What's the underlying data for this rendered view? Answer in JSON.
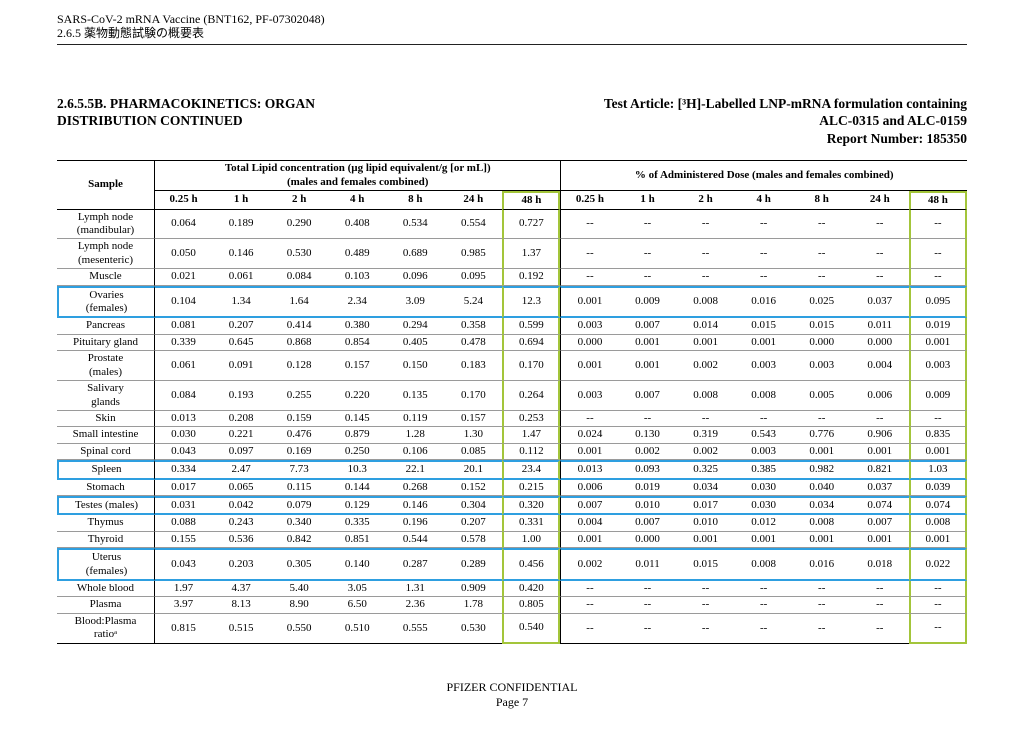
{
  "header": {
    "line1": "SARS-CoV-2 mRNA Vaccine (BNT162, PF-07302048)",
    "line2": "2.6.5 薬物動態試験の概要表"
  },
  "title": {
    "left": "2.6.5.5B. PHARMACOKINETICS: ORGAN\nDISTRIBUTION CONTINUED",
    "right": "Test Article: [³H]-Labelled LNP-mRNA formulation containing\nALC-0315 and ALC-0159\nReport Number: 185350"
  },
  "footer": {
    "line1": "PFIZER CONFIDENTIAL",
    "line2": "Page 7"
  },
  "colors": {
    "column_highlight_green": "#a3c53a",
    "row_highlight_blue": "#2e9fe0"
  },
  "table": {
    "sample_header": "Sample",
    "group1_header": "Total Lipid concentration (µg lipid equivalent/g [or mL])\n(males and females combined)",
    "group2_header": "% of Administered Dose (males and females combined)",
    "time_headers": [
      "0.25 h",
      "1 h",
      "2 h",
      "4 h",
      "8 h",
      "24 h",
      "48 h"
    ],
    "rows": [
      {
        "sample": "Lymph node\n(mandibular)",
        "lipid": [
          "0.064",
          "0.189",
          "0.290",
          "0.408",
          "0.534",
          "0.554",
          "0.727"
        ],
        "dose": [
          "--",
          "--",
          "--",
          "--",
          "--",
          "--",
          "--"
        ],
        "highlight": false
      },
      {
        "sample": "Lymph node\n(mesenteric)",
        "lipid": [
          "0.050",
          "0.146",
          "0.530",
          "0.489",
          "0.689",
          "0.985",
          "1.37"
        ],
        "dose": [
          "--",
          "--",
          "--",
          "--",
          "--",
          "--",
          "--"
        ],
        "highlight": false
      },
      {
        "sample": "Muscle",
        "lipid": [
          "0.021",
          "0.061",
          "0.084",
          "0.103",
          "0.096",
          "0.095",
          "0.192"
        ],
        "dose": [
          "--",
          "--",
          "--",
          "--",
          "--",
          "--",
          "--"
        ],
        "highlight": false
      },
      {
        "sample": "Ovaries\n(females)",
        "lipid": [
          "0.104",
          "1.34",
          "1.64",
          "2.34",
          "3.09",
          "5.24",
          "12.3"
        ],
        "dose": [
          "0.001",
          "0.009",
          "0.008",
          "0.016",
          "0.025",
          "0.037",
          "0.095"
        ],
        "highlight": true
      },
      {
        "sample": "Pancreas",
        "lipid": [
          "0.081",
          "0.207",
          "0.414",
          "0.380",
          "0.294",
          "0.358",
          "0.599"
        ],
        "dose": [
          "0.003",
          "0.007",
          "0.014",
          "0.015",
          "0.015",
          "0.011",
          "0.019"
        ],
        "highlight": false
      },
      {
        "sample": "Pituitary gland",
        "lipid": [
          "0.339",
          "0.645",
          "0.868",
          "0.854",
          "0.405",
          "0.478",
          "0.694"
        ],
        "dose": [
          "0.000",
          "0.001",
          "0.001",
          "0.001",
          "0.000",
          "0.000",
          "0.001"
        ],
        "highlight": false
      },
      {
        "sample": "Prostate\n(males)",
        "lipid": [
          "0.061",
          "0.091",
          "0.128",
          "0.157",
          "0.150",
          "0.183",
          "0.170"
        ],
        "dose": [
          "0.001",
          "0.001",
          "0.002",
          "0.003",
          "0.003",
          "0.004",
          "0.003"
        ],
        "highlight": false
      },
      {
        "sample": "Salivary\nglands",
        "lipid": [
          "0.084",
          "0.193",
          "0.255",
          "0.220",
          "0.135",
          "0.170",
          "0.264"
        ],
        "dose": [
          "0.003",
          "0.007",
          "0.008",
          "0.008",
          "0.005",
          "0.006",
          "0.009"
        ],
        "highlight": false
      },
      {
        "sample": "Skin",
        "lipid": [
          "0.013",
          "0.208",
          "0.159",
          "0.145",
          "0.119",
          "0.157",
          "0.253"
        ],
        "dose": [
          "--",
          "--",
          "--",
          "--",
          "--",
          "--",
          "--"
        ],
        "highlight": false
      },
      {
        "sample": "Small intestine",
        "lipid": [
          "0.030",
          "0.221",
          "0.476",
          "0.879",
          "1.28",
          "1.30",
          "1.47"
        ],
        "dose": [
          "0.024",
          "0.130",
          "0.319",
          "0.543",
          "0.776",
          "0.906",
          "0.835"
        ],
        "highlight": false
      },
      {
        "sample": "Spinal cord",
        "lipid": [
          "0.043",
          "0.097",
          "0.169",
          "0.250",
          "0.106",
          "0.085",
          "0.112"
        ],
        "dose": [
          "0.001",
          "0.002",
          "0.002",
          "0.003",
          "0.001",
          "0.001",
          "0.001"
        ],
        "highlight": false
      },
      {
        "sample": "Spleen",
        "lipid": [
          "0.334",
          "2.47",
          "7.73",
          "10.3",
          "22.1",
          "20.1",
          "23.4"
        ],
        "dose": [
          "0.013",
          "0.093",
          "0.325",
          "0.385",
          "0.982",
          "0.821",
          "1.03"
        ],
        "highlight": true
      },
      {
        "sample": "Stomach",
        "lipid": [
          "0.017",
          "0.065",
          "0.115",
          "0.144",
          "0.268",
          "0.152",
          "0.215"
        ],
        "dose": [
          "0.006",
          "0.019",
          "0.034",
          "0.030",
          "0.040",
          "0.037",
          "0.039"
        ],
        "highlight": false
      },
      {
        "sample": "Testes (males)",
        "lipid": [
          "0.031",
          "0.042",
          "0.079",
          "0.129",
          "0.146",
          "0.304",
          "0.320"
        ],
        "dose": [
          "0.007",
          "0.010",
          "0.017",
          "0.030",
          "0.034",
          "0.074",
          "0.074"
        ],
        "highlight": true
      },
      {
        "sample": "Thymus",
        "lipid": [
          "0.088",
          "0.243",
          "0.340",
          "0.335",
          "0.196",
          "0.207",
          "0.331"
        ],
        "dose": [
          "0.004",
          "0.007",
          "0.010",
          "0.012",
          "0.008",
          "0.007",
          "0.008"
        ],
        "highlight": false
      },
      {
        "sample": "Thyroid",
        "lipid": [
          "0.155",
          "0.536",
          "0.842",
          "0.851",
          "0.544",
          "0.578",
          "1.00"
        ],
        "dose": [
          "0.001",
          "0.000",
          "0.001",
          "0.001",
          "0.001",
          "0.001",
          "0.001"
        ],
        "highlight": false
      },
      {
        "sample": "Uterus\n(females)",
        "lipid": [
          "0.043",
          "0.203",
          "0.305",
          "0.140",
          "0.287",
          "0.289",
          "0.456"
        ],
        "dose": [
          "0.002",
          "0.011",
          "0.015",
          "0.008",
          "0.016",
          "0.018",
          "0.022"
        ],
        "highlight": true
      },
      {
        "sample": "Whole blood",
        "lipid": [
          "1.97",
          "4.37",
          "5.40",
          "3.05",
          "1.31",
          "0.909",
          "0.420"
        ],
        "dose": [
          "--",
          "--",
          "--",
          "--",
          "--",
          "--",
          "--"
        ],
        "highlight": false
      },
      {
        "sample": "Plasma",
        "lipid": [
          "3.97",
          "8.13",
          "8.90",
          "6.50",
          "2.36",
          "1.78",
          "0.805"
        ],
        "dose": [
          "--",
          "--",
          "--",
          "--",
          "--",
          "--",
          "--"
        ],
        "highlight": false
      },
      {
        "sample": "Blood:Plasma\nratioᵃ",
        "lipid": [
          "0.815",
          "0.515",
          "0.550",
          "0.510",
          "0.555",
          "0.530",
          "0.540"
        ],
        "dose": [
          "--",
          "--",
          "--",
          "--",
          "--",
          "--",
          "--"
        ],
        "highlight": false
      }
    ]
  }
}
